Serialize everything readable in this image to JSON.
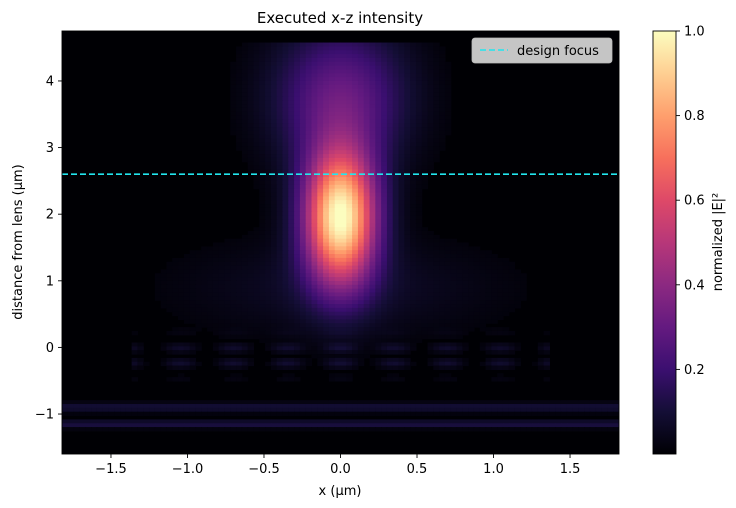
{
  "chart_data": {
    "type": "heatmap",
    "title": "Executed x-z intensity",
    "xlabel": "x (µm)",
    "ylabel": "distance from lens (µm)",
    "xlim": [
      -1.82,
      1.82
    ],
    "ylim": [
      -1.6,
      4.75
    ],
    "x_ticks": [
      -1.5,
      -1.0,
      -0.5,
      0.0,
      0.5,
      1.0,
      1.5
    ],
    "x_tick_labels": [
      "−1.5",
      "−1.0",
      "−0.5",
      "0.0",
      "0.5",
      "1.0",
      "1.5"
    ],
    "y_ticks": [
      -1,
      0,
      1,
      2,
      3,
      4
    ],
    "y_tick_labels": [
      "−1",
      "0",
      "1",
      "2",
      "3",
      "4"
    ],
    "colormap": "magma",
    "colorbar": {
      "label": "normalized |E|²",
      "range": [
        0.0,
        1.0
      ],
      "ticks": [
        0.2,
        0.4,
        0.6,
        0.8,
        1.0
      ],
      "tick_labels": [
        "0.2",
        "0.4",
        "0.6",
        "0.8",
        "1.0"
      ]
    },
    "peak": {
      "x": 0.0,
      "z": 1.95,
      "value": 1.0
    },
    "reference_lines": [
      {
        "name": "design focus",
        "orientation": "horizontal",
        "z": 2.6,
        "color": "#22e6ee",
        "style": "dashed"
      }
    ],
    "legend": {
      "position": "top-right",
      "entries": [
        "design focus"
      ]
    },
    "grid": false
  }
}
